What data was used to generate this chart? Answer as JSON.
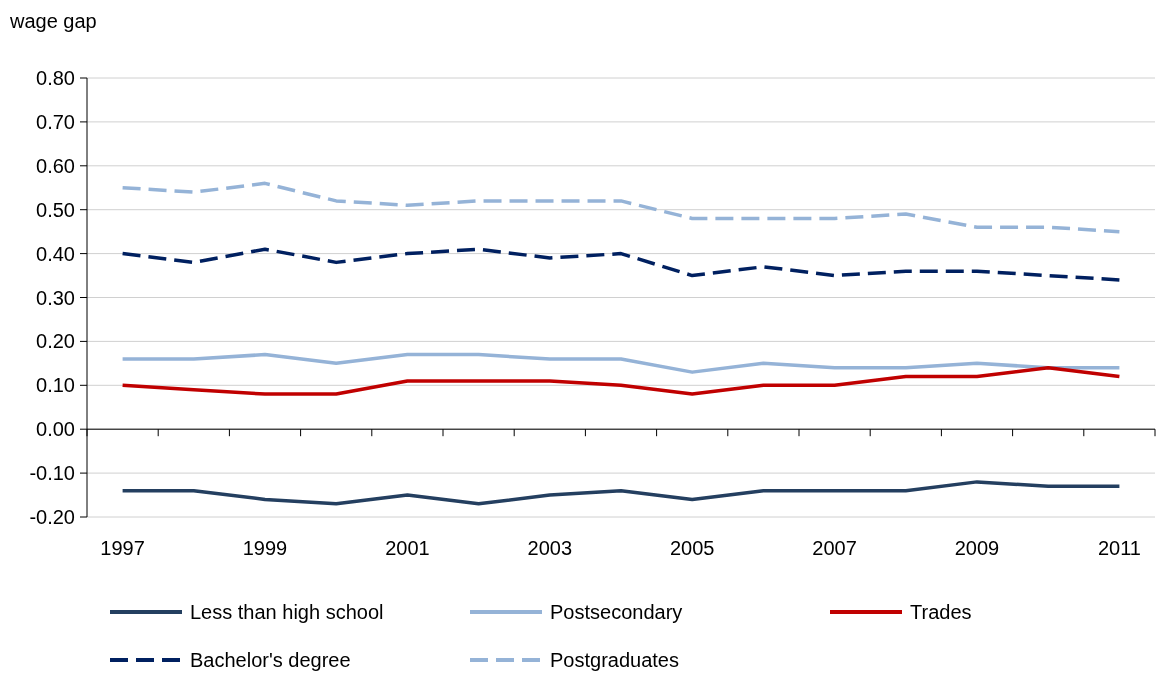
{
  "chart_data": {
    "type": "line",
    "ylabel": "wage gap",
    "categories": [
      "1997",
      null,
      "1999",
      null,
      "2001",
      null,
      "2003",
      null,
      "2005",
      null,
      "2007",
      null,
      "2009",
      null,
      "2011"
    ],
    "ylim": [
      -0.2,
      0.8
    ],
    "yticks": [
      {
        "value": -0.2,
        "label": "-0.20"
      },
      {
        "value": -0.1,
        "label": "-0.10"
      },
      {
        "value": 0,
        "label": "0.00"
      },
      {
        "value": 0.1,
        "label": "0.10"
      },
      {
        "value": 0.2,
        "label": "0.20"
      },
      {
        "value": 0.3,
        "label": "0.30"
      },
      {
        "value": 0.4,
        "label": "0.40"
      },
      {
        "value": 0.5,
        "label": "0.50"
      },
      {
        "value": 0.6,
        "label": "0.60"
      },
      {
        "value": 0.7,
        "label": "0.70"
      },
      {
        "value": 0.8,
        "label": "0.80"
      }
    ],
    "grid": "y",
    "legend": "bottom",
    "series": [
      {
        "name": "Less than high school",
        "color": "#243f60",
        "line_style": "solid",
        "values": [
          -0.14,
          -0.14,
          -0.16,
          -0.17,
          -0.15,
          -0.17,
          -0.15,
          -0.14,
          -0.16,
          -0.14,
          -0.14,
          -0.14,
          -0.12,
          -0.13,
          -0.13
        ]
      },
      {
        "name": "Postsecondary",
        "color": "#95b3d7",
        "line_style": "solid",
        "values": [
          0.16,
          0.16,
          0.17,
          0.15,
          0.17,
          0.17,
          0.16,
          0.16,
          0.13,
          0.15,
          0.14,
          0.14,
          0.15,
          0.14,
          0.14
        ]
      },
      {
        "name": "Trades",
        "color": "#c00000",
        "line_style": "solid",
        "values": [
          0.1,
          0.09,
          0.08,
          0.08,
          0.11,
          0.11,
          0.11,
          0.1,
          0.08,
          0.1,
          0.1,
          0.12,
          0.12,
          0.14,
          0.12
        ]
      },
      {
        "name": "Bachelor's degree",
        "color": "#002060",
        "line_style": "dashed",
        "values": [
          0.4,
          0.38,
          0.41,
          0.38,
          0.4,
          0.41,
          0.39,
          0.4,
          0.35,
          0.37,
          0.35,
          0.36,
          0.36,
          0.35,
          0.34
        ]
      },
      {
        "name": "Postgraduates",
        "color": "#95b3d7",
        "line_style": "dashed",
        "values": [
          0.55,
          0.54,
          0.56,
          0.52,
          0.51,
          0.52,
          0.52,
          0.52,
          0.48,
          0.48,
          0.48,
          0.49,
          0.46,
          0.46,
          0.45
        ]
      }
    ]
  }
}
